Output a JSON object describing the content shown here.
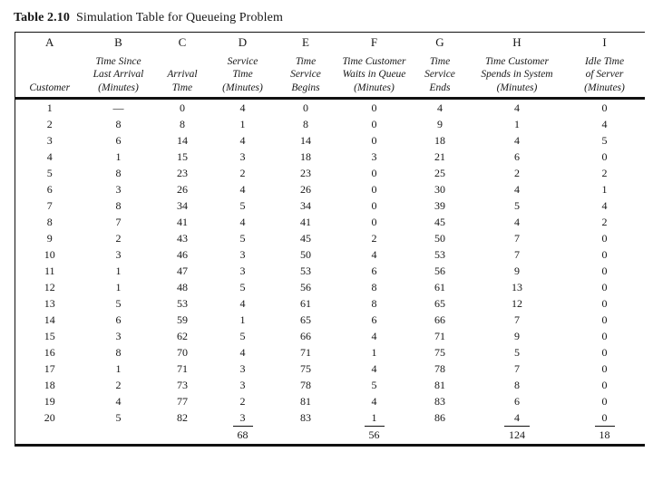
{
  "caption": {
    "label": "Table 2.10",
    "title": "Simulation Table for Queueing Problem"
  },
  "table": {
    "columns": [
      {
        "letter": "A",
        "desc_lines": [
          "Customer"
        ]
      },
      {
        "letter": "B",
        "desc_lines": [
          "Time Since",
          "Last Arrival",
          "(Minutes)"
        ]
      },
      {
        "letter": "C",
        "desc_lines": [
          "Arrival",
          "Time"
        ]
      },
      {
        "letter": "D",
        "desc_lines": [
          "Service",
          "Time",
          "(Minutes)"
        ]
      },
      {
        "letter": "E",
        "desc_lines": [
          "Time",
          "Service",
          "Begins"
        ]
      },
      {
        "letter": "F",
        "desc_lines": [
          "Time Customer",
          "Waits in Queue",
          "(Minutes)"
        ]
      },
      {
        "letter": "G",
        "desc_lines": [
          "Time",
          "Service",
          "Ends"
        ]
      },
      {
        "letter": "H",
        "desc_lines": [
          "Time Customer",
          "Spends in System",
          "(Minutes)"
        ]
      },
      {
        "letter": "I",
        "desc_lines": [
          "Idle Time",
          "of Server",
          "(Minutes)"
        ]
      }
    ],
    "rows": [
      [
        "1",
        "—",
        "0",
        "4",
        "0",
        "0",
        "4",
        "4",
        "0"
      ],
      [
        "2",
        "8",
        "8",
        "1",
        "8",
        "0",
        "9",
        "1",
        "4"
      ],
      [
        "3",
        "6",
        "14",
        "4",
        "14",
        "0",
        "18",
        "4",
        "5"
      ],
      [
        "4",
        "1",
        "15",
        "3",
        "18",
        "3",
        "21",
        "6",
        "0"
      ],
      [
        "5",
        "8",
        "23",
        "2",
        "23",
        "0",
        "25",
        "2",
        "2"
      ],
      [
        "6",
        "3",
        "26",
        "4",
        "26",
        "0",
        "30",
        "4",
        "1"
      ],
      [
        "7",
        "8",
        "34",
        "5",
        "34",
        "0",
        "39",
        "5",
        "4"
      ],
      [
        "8",
        "7",
        "41",
        "4",
        "41",
        "0",
        "45",
        "4",
        "2"
      ],
      [
        "9",
        "2",
        "43",
        "5",
        "45",
        "2",
        "50",
        "7",
        "0"
      ],
      [
        "10",
        "3",
        "46",
        "3",
        "50",
        "4",
        "53",
        "7",
        "0"
      ],
      [
        "11",
        "1",
        "47",
        "3",
        "53",
        "6",
        "56",
        "9",
        "0"
      ],
      [
        "12",
        "1",
        "48",
        "5",
        "56",
        "8",
        "61",
        "13",
        "0"
      ],
      [
        "13",
        "5",
        "53",
        "4",
        "61",
        "8",
        "65",
        "12",
        "0"
      ],
      [
        "14",
        "6",
        "59",
        "1",
        "65",
        "6",
        "66",
        "7",
        "0"
      ],
      [
        "15",
        "3",
        "62",
        "5",
        "66",
        "4",
        "71",
        "9",
        "0"
      ],
      [
        "16",
        "8",
        "70",
        "4",
        "71",
        "1",
        "75",
        "5",
        "0"
      ],
      [
        "17",
        "1",
        "71",
        "3",
        "75",
        "4",
        "78",
        "7",
        "0"
      ],
      [
        "18",
        "2",
        "73",
        "3",
        "78",
        "5",
        "81",
        "8",
        "0"
      ],
      [
        "19",
        "4",
        "77",
        "2",
        "81",
        "4",
        "83",
        "6",
        "0"
      ],
      [
        "20",
        "5",
        "82",
        "3",
        "83",
        "1",
        "86",
        "4",
        "0"
      ]
    ],
    "totals": [
      null,
      null,
      null,
      "68",
      null,
      "56",
      null,
      "124",
      "18"
    ]
  }
}
